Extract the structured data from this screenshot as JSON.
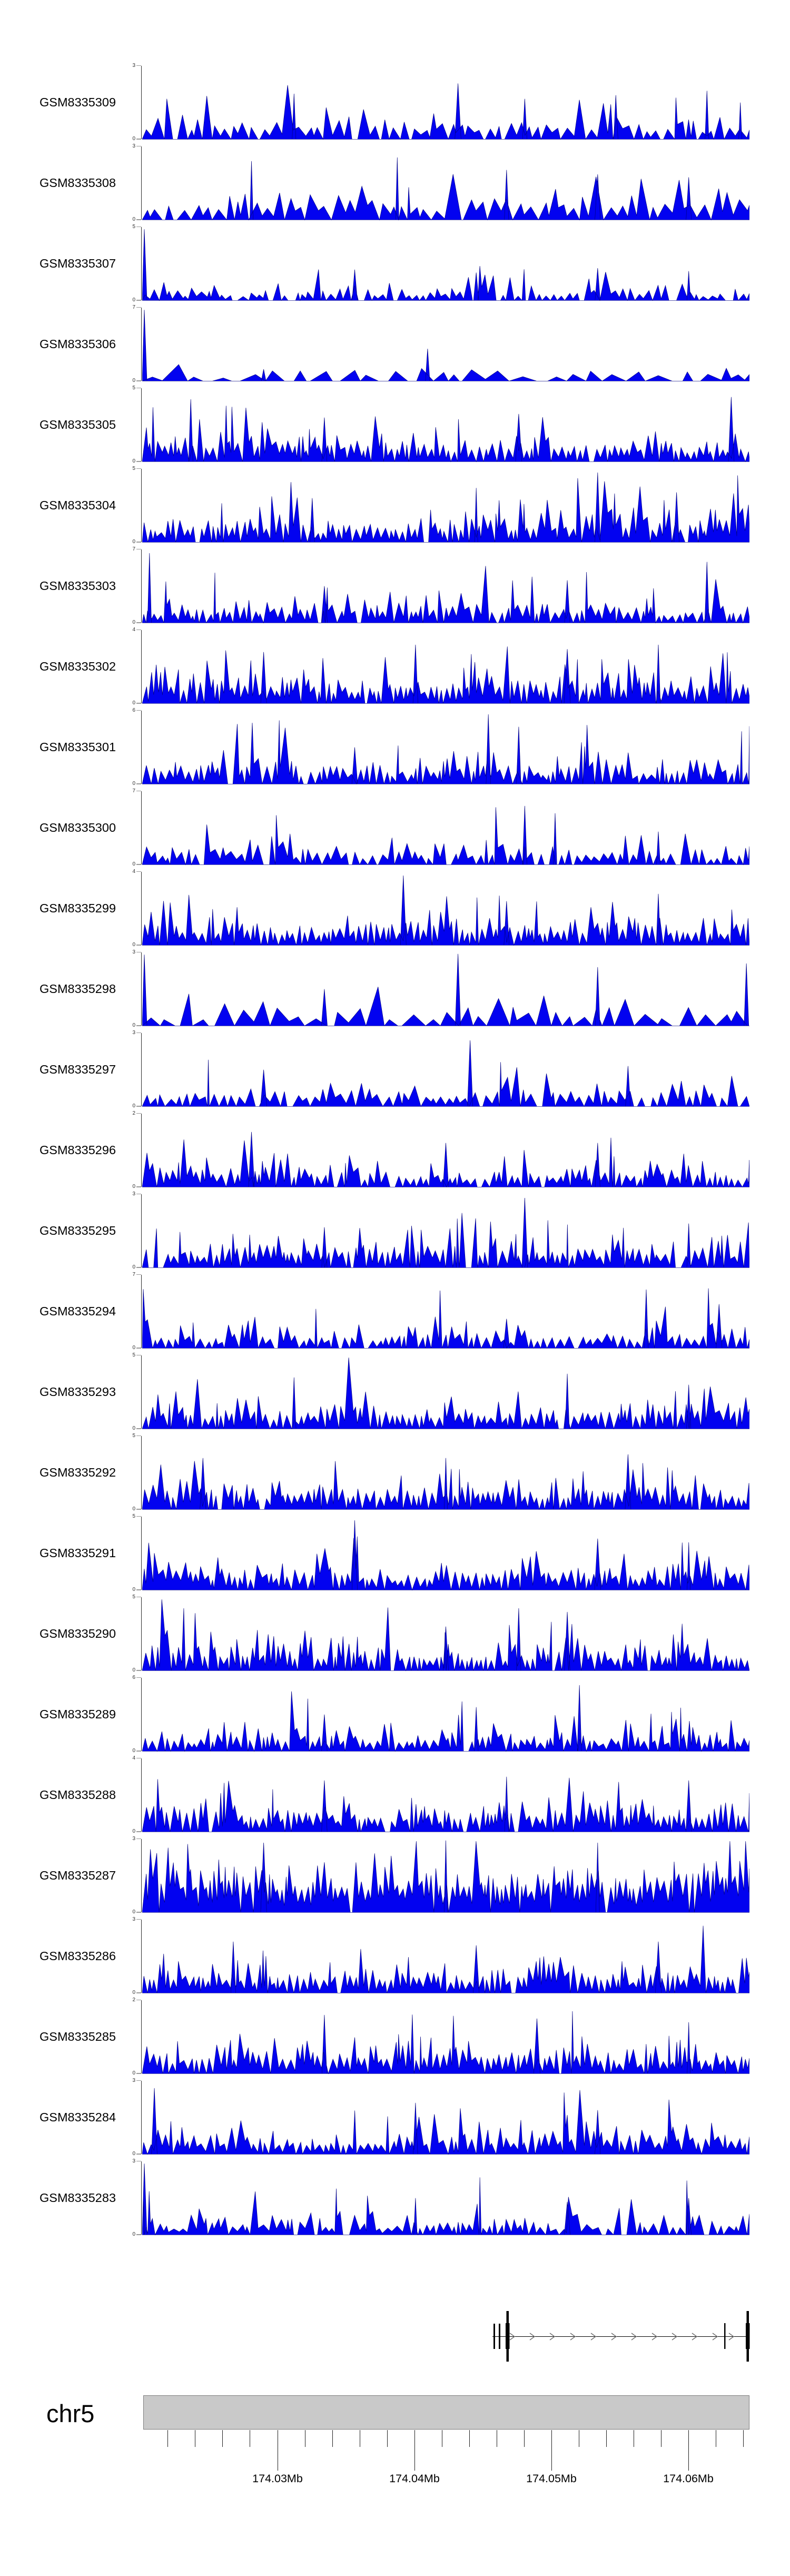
{
  "chart_data": {
    "type": "area",
    "title": "",
    "description": "Genome browser read-coverage tracks for 27 GEO samples over chr5 ~174.02-174.065Mb, with gene model and chromosome axis",
    "signal_color": "#0202f0",
    "signal_edge_color": "#000080",
    "tracks": [
      {
        "name": "GSM8335309",
        "ylim": [
          0,
          3
        ],
        "seed": 11,
        "wMin": 4,
        "wR": 10,
        "pz": 0.55,
        "gapP": 0.15,
        "gapL": 8,
        "hB": 0.12,
        "hS": 0.12,
        "ndP": 0.03,
        "vMin": 0.12,
        "vMax": 0.5,
        "left": 0,
        "spikes": [
          [
            0.25,
            0.62
          ],
          [
            0.52,
            0.76
          ],
          [
            0.63,
            0.55
          ],
          [
            0.78,
            0.6
          ],
          [
            0.93,
            0.66
          ],
          [
            0.985,
            0.5
          ]
        ]
      },
      {
        "name": "GSM8335308",
        "ylim": [
          0,
          3
        ],
        "seed": 22,
        "wMin": 5,
        "wR": 12,
        "pz": 0.5,
        "gapP": 0.1,
        "gapL": 9,
        "hB": 0.15,
        "hS": 0.16,
        "ndP": 0.03,
        "vMin": 0.12,
        "vMax": 0.5,
        "left": 0,
        "spikes": [
          [
            0.18,
            0.8
          ],
          [
            0.42,
            0.85
          ],
          [
            0.6,
            0.68
          ],
          [
            0.75,
            0.62
          ],
          [
            0.9,
            0.58
          ]
        ]
      },
      {
        "name": "GSM8335307",
        "ylim": [
          0,
          5
        ],
        "seed": 33,
        "wMin": 3,
        "wR": 8,
        "pz": 0.6,
        "gapP": 0.3,
        "gapL": 12,
        "hB": 0.05,
        "hS": 0.08,
        "ndP": 0.05,
        "vMin": 0.1,
        "vMax": 0.4,
        "left": 1,
        "spikes": [
          [
            0.35,
            0.42
          ],
          [
            0.55,
            0.38
          ],
          [
            0.75,
            0.44
          ],
          [
            0.9,
            0.4
          ]
        ]
      },
      {
        "name": "GSM8335306",
        "ylim": [
          0,
          7
        ],
        "seed": 44,
        "wMin": 7,
        "wR": 24,
        "pz": 0.8,
        "gapP": 0.4,
        "gapL": 18,
        "hB": 0.05,
        "hS": 0.05,
        "ndP": 0.02,
        "vMin": 0.1,
        "vMax": 0.3,
        "left": 1,
        "spikes": [
          [
            0.47,
            0.44
          ],
          [
            0.2,
            0.16
          ]
        ]
      },
      {
        "name": "GSM8335305",
        "ylim": [
          0,
          5
        ],
        "seed": 55,
        "wMin": 2.5,
        "wR": 6.5,
        "pz": 0.3,
        "gapP": 0.07,
        "gapL": 7,
        "hB": 0.16,
        "hS": 0.14,
        "ndP": 0.05,
        "vMin": 0.12,
        "vMax": 0.5,
        "left": 0,
        "spikes": [
          [
            0.08,
            0.85
          ],
          [
            0.3,
            0.6
          ],
          [
            0.62,
            0.65
          ],
          [
            0.97,
            0.88
          ]
        ]
      },
      {
        "name": "GSM8335304",
        "ylim": [
          0,
          5
        ],
        "seed": 66,
        "wMin": 2.5,
        "wR": 6.5,
        "pz": 0.3,
        "gapP": 0.07,
        "gapL": 7,
        "hB": 0.16,
        "hS": 0.14,
        "ndP": 0.05,
        "vMin": 0.12,
        "vMax": 0.5,
        "left": 0,
        "spikes": [
          [
            0.28,
            0.6
          ],
          [
            0.55,
            0.74
          ],
          [
            0.75,
            0.95
          ],
          [
            0.88,
            0.68
          ]
        ]
      },
      {
        "name": "GSM8335303",
        "ylim": [
          0,
          7
        ],
        "seed": 77,
        "wMin": 2.5,
        "wR": 7,
        "pz": 0.4,
        "gapP": 0.12,
        "gapL": 8,
        "hB": 0.12,
        "hS": 0.13,
        "ndP": 0.05,
        "vMin": 0.12,
        "vMax": 0.5,
        "left": 0,
        "spikes": [
          [
            0.012,
            0.95
          ],
          [
            0.3,
            0.5
          ],
          [
            0.7,
            0.58
          ],
          [
            0.93,
            0.83
          ]
        ]
      },
      {
        "name": "GSM8335302",
        "ylim": [
          0,
          4
        ],
        "seed": 88,
        "wMin": 2.5,
        "wR": 6,
        "pz": 0.28,
        "gapP": 0.07,
        "gapL": 7,
        "hB": 0.17,
        "hS": 0.15,
        "ndP": 0.05,
        "vMin": 0.12,
        "vMax": 0.5,
        "left": 0,
        "spikes": [
          [
            0.2,
            0.7
          ],
          [
            0.45,
            0.8
          ],
          [
            0.7,
            0.74
          ],
          [
            0.85,
            0.8
          ]
        ]
      },
      {
        "name": "GSM8335301",
        "ylim": [
          0,
          6
        ],
        "seed": 99,
        "wMin": 2.5,
        "wR": 7,
        "pz": 0.35,
        "gapP": 0.1,
        "gapL": 8,
        "hB": 0.13,
        "hS": 0.14,
        "ndP": 0.05,
        "vMin": 0.12,
        "vMax": 0.5,
        "left": 0,
        "spikes": [
          [
            0.57,
            0.95
          ],
          [
            0.62,
            0.78
          ],
          [
            0.35,
            0.5
          ]
        ]
      },
      {
        "name": "GSM8335300",
        "ylim": [
          0,
          7
        ],
        "seed": 110,
        "wMin": 3,
        "wR": 8,
        "pz": 0.5,
        "gapP": 0.18,
        "gapL": 9,
        "hB": 0.08,
        "hS": 0.11,
        "ndP": 0.04,
        "vMin": 0.12,
        "vMax": 0.5,
        "left": 0,
        "spikes": [
          [
            0.63,
            0.8
          ],
          [
            0.68,
            0.7
          ],
          [
            0.85,
            0.45
          ]
        ]
      },
      {
        "name": "GSM8335299",
        "ylim": [
          0,
          4
        ],
        "seed": 121,
        "wMin": 2.5,
        "wR": 6,
        "pz": 0.28,
        "gapP": 0.07,
        "gapL": 7,
        "hB": 0.16,
        "hS": 0.15,
        "ndP": 0.05,
        "vMin": 0.12,
        "vMax": 0.5,
        "left": 0,
        "spikes": [
          [
            0.43,
            0.95
          ],
          [
            0.6,
            0.6
          ],
          [
            0.85,
            0.7
          ]
        ]
      },
      {
        "name": "GSM8335298",
        "ylim": [
          0,
          3
        ],
        "seed": 132,
        "wMin": 6,
        "wR": 18,
        "pz": 0.7,
        "gapP": 0.3,
        "gapL": 13,
        "hB": 0.08,
        "hS": 0.11,
        "ndP": 0.07,
        "vMin": 0.1,
        "vMax": 0.4,
        "left": 1,
        "spikes": [
          [
            0.52,
            0.98
          ],
          [
            0.75,
            0.8
          ],
          [
            0.3,
            0.5
          ],
          [
            0.995,
            0.85
          ]
        ]
      },
      {
        "name": "GSM8335297",
        "ylim": [
          0,
          3
        ],
        "seed": 143,
        "wMin": 3.5,
        "wR": 9,
        "pz": 0.5,
        "gapP": 0.18,
        "gapL": 9,
        "hB": 0.1,
        "hS": 0.12,
        "ndP": 0.04,
        "vMin": 0.12,
        "vMax": 0.5,
        "left": 0,
        "spikes": [
          [
            0.54,
            0.9
          ],
          [
            0.2,
            0.5
          ],
          [
            0.8,
            0.55
          ]
        ]
      },
      {
        "name": "GSM8335296",
        "ylim": [
          0,
          2
        ],
        "seed": 154,
        "wMin": 2.5,
        "wR": 7,
        "pz": 0.35,
        "gapP": 0.1,
        "gapL": 8,
        "hB": 0.13,
        "hS": 0.15,
        "ndP": 0.05,
        "vMin": 0.12,
        "vMax": 0.5,
        "left": 0,
        "spikes": [
          [
            0.18,
            0.75
          ],
          [
            0.5,
            0.6
          ],
          [
            0.75,
            0.6
          ]
        ]
      },
      {
        "name": "GSM8335295",
        "ylim": [
          0,
          3
        ],
        "seed": 165,
        "wMin": 2.5,
        "wR": 7,
        "pz": 0.3,
        "gapP": 0.09,
        "gapL": 8,
        "hB": 0.14,
        "hS": 0.14,
        "ndP": 0.05,
        "vMin": 0.12,
        "vMax": 0.5,
        "left": 0,
        "spikes": [
          [
            0.63,
            0.95
          ],
          [
            0.3,
            0.55
          ],
          [
            0.9,
            0.6
          ]
        ]
      },
      {
        "name": "GSM8335294",
        "ylim": [
          0,
          7
        ],
        "seed": 176,
        "wMin": 3,
        "wR": 7,
        "pz": 0.45,
        "gapP": 0.14,
        "gapL": 8,
        "hB": 0.09,
        "hS": 0.11,
        "ndP": 0.04,
        "vMin": 0.12,
        "vMax": 0.5,
        "left": 0,
        "spikes": [
          [
            0.83,
            0.8
          ],
          [
            0.6,
            0.4
          ],
          [
            0.95,
            0.6
          ]
        ]
      },
      {
        "name": "GSM8335293",
        "ylim": [
          0,
          5
        ],
        "seed": 187,
        "wMin": 2.5,
        "wR": 7,
        "pz": 0.3,
        "gapP": 0.08,
        "gapL": 8,
        "hB": 0.15,
        "hS": 0.15,
        "ndP": 0.05,
        "vMin": 0.12,
        "vMax": 0.5,
        "left": 0,
        "spikes": [
          [
            0.25,
            0.7
          ],
          [
            0.7,
            0.75
          ],
          [
            0.9,
            0.6
          ]
        ]
      },
      {
        "name": "GSM8335292",
        "ylim": [
          0,
          5
        ],
        "seed": 198,
        "wMin": 2.5,
        "wR": 6,
        "pz": 0.26,
        "gapP": 0.07,
        "gapL": 7,
        "hB": 0.16,
        "hS": 0.16,
        "ndP": 0.05,
        "vMin": 0.12,
        "vMax": 0.5,
        "left": 0,
        "spikes": [
          [
            0.1,
            0.7
          ],
          [
            0.5,
            0.7
          ],
          [
            0.8,
            0.75
          ]
        ]
      },
      {
        "name": "GSM8335291",
        "ylim": [
          0,
          5
        ],
        "seed": 209,
        "wMin": 2.5,
        "wR": 7,
        "pz": 0.3,
        "gapP": 0.08,
        "gapL": 8,
        "hB": 0.15,
        "hS": 0.15,
        "ndP": 0.05,
        "vMin": 0.12,
        "vMax": 0.5,
        "left": 0,
        "spikes": [
          [
            0.35,
            0.95
          ],
          [
            0.75,
            0.7
          ],
          [
            0.9,
            0.65
          ]
        ]
      },
      {
        "name": "GSM8335290",
        "ylim": [
          0,
          5
        ],
        "seed": 220,
        "wMin": 2.5,
        "wR": 6,
        "pz": 0.26,
        "gapP": 0.07,
        "gapL": 7,
        "hB": 0.16,
        "hS": 0.16,
        "ndP": 0.05,
        "vMin": 0.12,
        "vMax": 0.5,
        "left": 0,
        "spikes": [
          [
            0.62,
            0.85
          ],
          [
            0.7,
            0.8
          ],
          [
            0.5,
            0.6
          ]
        ]
      },
      {
        "name": "GSM8335289",
        "ylim": [
          0,
          6
        ],
        "seed": 231,
        "wMin": 2.5,
        "wR": 7,
        "pz": 0.33,
        "gapP": 0.1,
        "gapL": 8,
        "hB": 0.12,
        "hS": 0.14,
        "ndP": 0.05,
        "vMin": 0.12,
        "vMax": 0.5,
        "left": 0,
        "spikes": [
          [
            0.72,
            0.9
          ],
          [
            0.55,
            0.6
          ],
          [
            0.3,
            0.5
          ]
        ]
      },
      {
        "name": "GSM8335288",
        "ylim": [
          0,
          4
        ],
        "seed": 242,
        "wMin": 2.5,
        "wR": 6,
        "pz": 0.22,
        "gapP": 0.06,
        "gapL": 7,
        "hB": 0.18,
        "hS": 0.16,
        "ndP": 0.05,
        "vMin": 0.12,
        "vMax": 0.5,
        "left": 0,
        "spikes": [
          [
            0.3,
            0.7
          ],
          [
            0.6,
            0.75
          ],
          [
            0.9,
            0.7
          ]
        ]
      },
      {
        "name": "GSM8335287",
        "ylim": [
          0,
          3
        ],
        "seed": 253,
        "wMin": 2.5,
        "wR": 5.5,
        "pz": 0.1,
        "gapP": 0.04,
        "gapL": 6,
        "hB": 0.36,
        "hS": 0.2,
        "ndP": 0.06,
        "vMin": 0.25,
        "vMax": 0.6,
        "left": 0,
        "spikes": [
          [
            0.2,
            0.95
          ],
          [
            0.5,
            0.98
          ],
          [
            0.75,
            0.95
          ]
        ]
      },
      {
        "name": "GSM8335286",
        "ylim": [
          0,
          3
        ],
        "seed": 264,
        "wMin": 2.5,
        "wR": 6,
        "pz": 0.28,
        "gapP": 0.08,
        "gapL": 8,
        "hB": 0.16,
        "hS": 0.15,
        "ndP": 0.05,
        "vMin": 0.12,
        "vMax": 0.5,
        "left": 0,
        "spikes": [
          [
            0.15,
            0.7
          ],
          [
            0.55,
            0.65
          ],
          [
            0.85,
            0.7
          ]
        ]
      },
      {
        "name": "GSM8335285",
        "ylim": [
          0,
          2
        ],
        "seed": 275,
        "wMin": 2.5,
        "wR": 6.5,
        "pz": 0.28,
        "gapP": 0.07,
        "gapL": 7,
        "hB": 0.17,
        "hS": 0.17,
        "ndP": 0.05,
        "vMin": 0.12,
        "vMax": 0.5,
        "left": 0,
        "spikes": [
          [
            0.3,
            0.8
          ],
          [
            0.65,
            0.75
          ],
          [
            0.9,
            0.7
          ]
        ]
      },
      {
        "name": "GSM8335284",
        "ylim": [
          0,
          3
        ],
        "seed": 286,
        "wMin": 2.5,
        "wR": 7,
        "pz": 0.35,
        "gapP": 0.1,
        "gapL": 8,
        "hB": 0.13,
        "hS": 0.14,
        "ndP": 0.05,
        "vMin": 0.12,
        "vMax": 0.5,
        "left": 0,
        "spikes": [
          [
            0.02,
            0.9
          ],
          [
            0.45,
            0.7
          ],
          [
            0.75,
            0.6
          ]
        ]
      },
      {
        "name": "GSM8335283",
        "ylim": [
          0,
          3
        ],
        "seed": 297,
        "wMin": 3,
        "wR": 8,
        "pz": 0.5,
        "gapP": 0.2,
        "gapL": 10,
        "hB": 0.09,
        "hS": 0.11,
        "ndP": 0.04,
        "vMin": 0.12,
        "vMax": 0.5,
        "left": 1,
        "spikes": [
          [
            0.45,
            0.5
          ],
          [
            0.7,
            0.45
          ],
          [
            0.9,
            0.5
          ]
        ]
      }
    ],
    "gene_track": {
      "strand": "+",
      "exon_color": "#000000",
      "arrow_color": "#6e6e6e",
      "line_y": 4435.5,
      "thin_exons": [
        {
          "x": 937,
          "w": 3,
          "y1": 4411,
          "y2": 4459
        },
        {
          "x": 947,
          "w": 3,
          "y1": 4411,
          "y2": 4459
        },
        {
          "x": 1375,
          "w": 2.5,
          "y1": 4410,
          "y2": 4459
        }
      ],
      "composite_exons": [
        {
          "x": 960,
          "narrow_w": 4.5,
          "narrow_y1": 4387,
          "narrow_y2": 4483,
          "thick_w": 7.5,
          "thick_y1": 4410,
          "thick_y2": 4459
        },
        {
          "x": 1416,
          "narrow_w": 4.5,
          "narrow_y1": 4387,
          "narrow_y2": 4483,
          "thick_w": 7.5,
          "thick_y1": 4410,
          "thick_y2": 4459
        }
      ],
      "line_x1": 935,
      "line_x2": 1418,
      "arrow_xs": [
        977,
        1015,
        1053,
        1092,
        1131,
        1170,
        1208,
        1247,
        1285,
        1323,
        1362,
        1393
      ]
    },
    "ideogram": {
      "label": "chr5",
      "fill": "#c9c9c9",
      "border": "#7e7e7e",
      "x1": 272,
      "x2": 1423,
      "y1": 4547,
      "y2": 4612
    },
    "x_axis": {
      "unit": "Mb",
      "major_ticks": [
        {
          "label": "174.03Mb",
          "x": 527
        },
        {
          "label": "174.04Mb",
          "x": 787
        },
        {
          "label": "174.05Mb",
          "x": 1047
        },
        {
          "label": "174.06Mb",
          "x": 1307
        }
      ],
      "minor_tick_xs": [
        318,
        370,
        422,
        474,
        579,
        631,
        683,
        735,
        839,
        891,
        943,
        995,
        1099,
        1151,
        1203,
        1255,
        1359,
        1411
      ],
      "tick_top": 4613,
      "minor_len": 32,
      "major_len": 77
    }
  }
}
